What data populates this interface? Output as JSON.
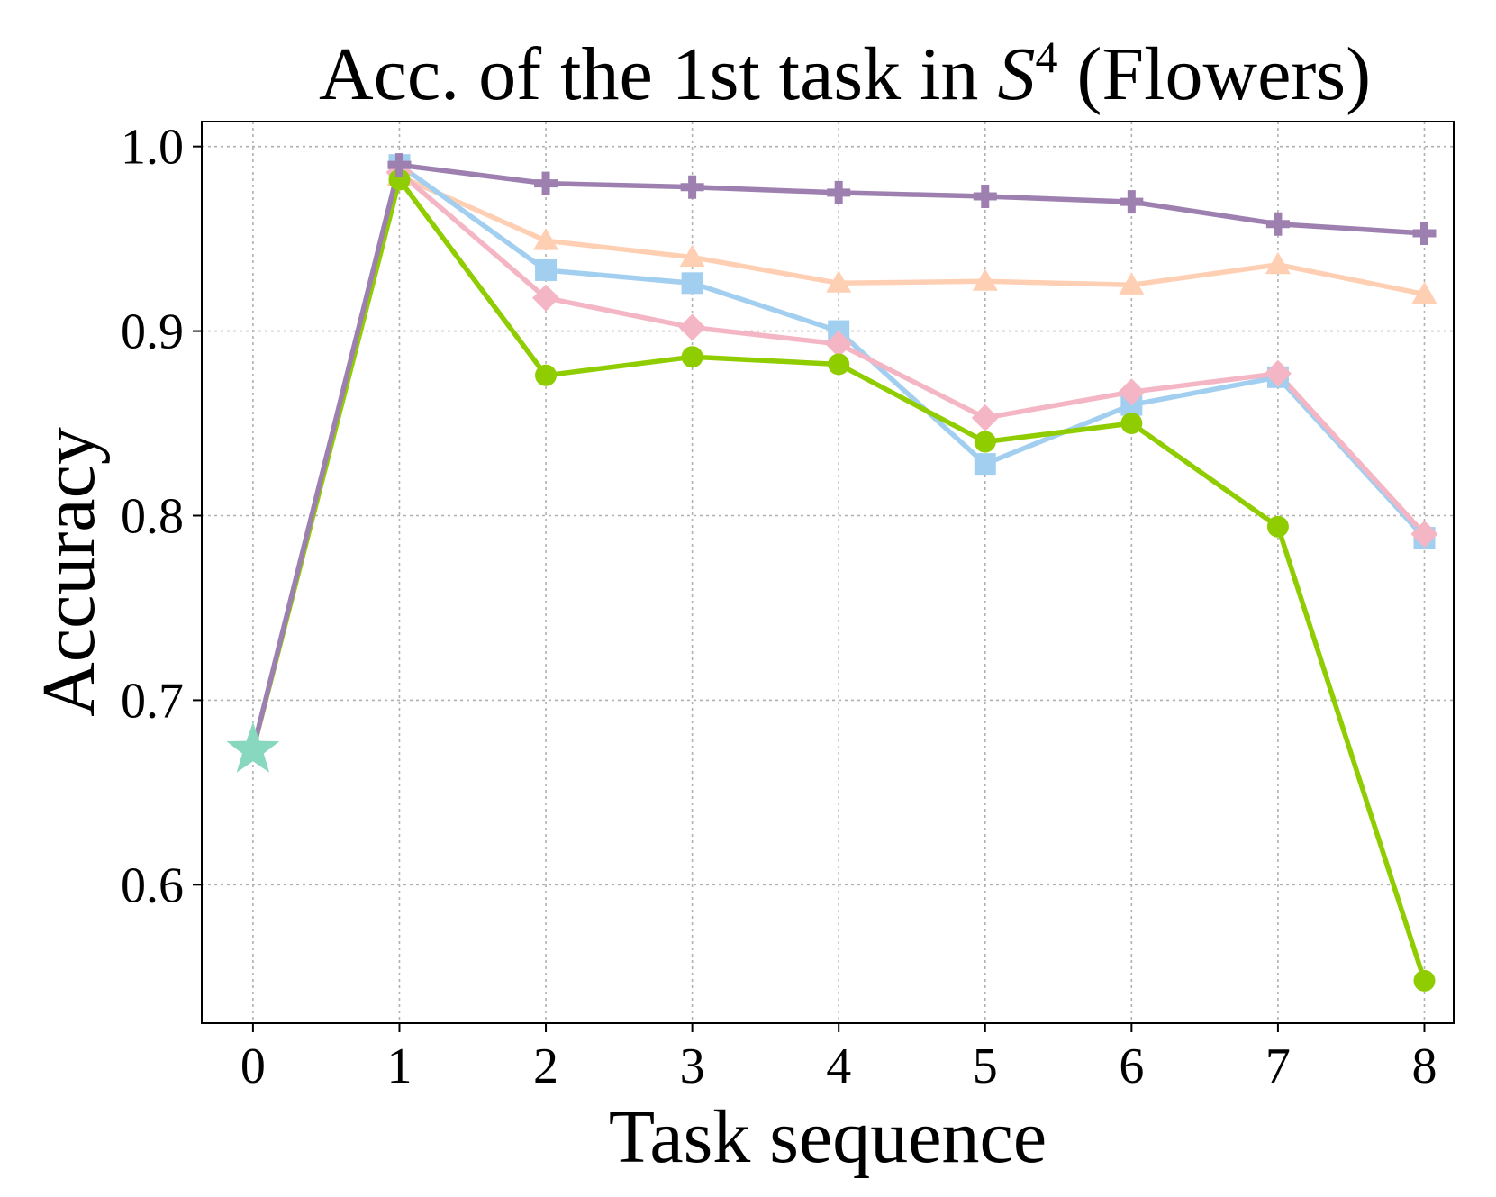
{
  "chart_data": {
    "type": "line",
    "title": {
      "prefix": "Acc. of the 1st task in ",
      "symbol": "S",
      "superscript": "4",
      "suffix": " (Flowers)"
    },
    "xlabel": "Task sequence",
    "ylabel": "Accuracy",
    "xlim": [
      -0.35,
      8.2
    ],
    "ylim": [
      0.525,
      1.0135
    ],
    "x_ticks": [
      0,
      1,
      2,
      3,
      4,
      5,
      6,
      7,
      8
    ],
    "y_ticks": [
      0.6,
      0.7,
      0.8,
      0.9,
      1.0
    ],
    "y_tick_labels": [
      "0.6",
      "0.7",
      "0.8",
      "0.9",
      "1.0"
    ],
    "grid": true,
    "start_point": {
      "x": 0,
      "y": 0.673,
      "marker": "star",
      "color": "#88d8c0"
    },
    "series": [
      {
        "color": "#ffcfb4",
        "marker": "triangle",
        "x": [
          0,
          1,
          2,
          3,
          4,
          5,
          6,
          7,
          8
        ],
        "y": [
          0.673,
          0.984,
          0.949,
          0.94,
          0.926,
          0.927,
          0.925,
          0.936,
          0.92
        ]
      },
      {
        "color": "#a2cff0",
        "marker": "square",
        "x": [
          0,
          1,
          2,
          3,
          4,
          5,
          6,
          7,
          8
        ],
        "y": [
          0.673,
          0.99,
          0.933,
          0.926,
          0.9,
          0.828,
          0.86,
          0.875,
          0.788
        ]
      },
      {
        "color": "#f4b6c4",
        "marker": "diamond",
        "x": [
          0,
          1,
          2,
          3,
          4,
          5,
          6,
          7,
          8
        ],
        "y": [
          0.673,
          0.986,
          0.918,
          0.902,
          0.893,
          0.853,
          0.867,
          0.877,
          0.79
        ]
      },
      {
        "color": "#8fcc00",
        "marker": "circle",
        "x": [
          0,
          1,
          2,
          3,
          4,
          5,
          6,
          7,
          8
        ],
        "y": [
          0.673,
          0.982,
          0.876,
          0.886,
          0.882,
          0.84,
          0.85,
          0.794,
          0.548
        ]
      },
      {
        "color": "#9d80b0",
        "marker": "plus",
        "x": [
          0,
          1,
          2,
          3,
          4,
          5,
          6,
          7,
          8
        ],
        "y": [
          0.673,
          0.99,
          0.98,
          0.978,
          0.975,
          0.973,
          0.97,
          0.958,
          0.953
        ]
      }
    ]
  }
}
